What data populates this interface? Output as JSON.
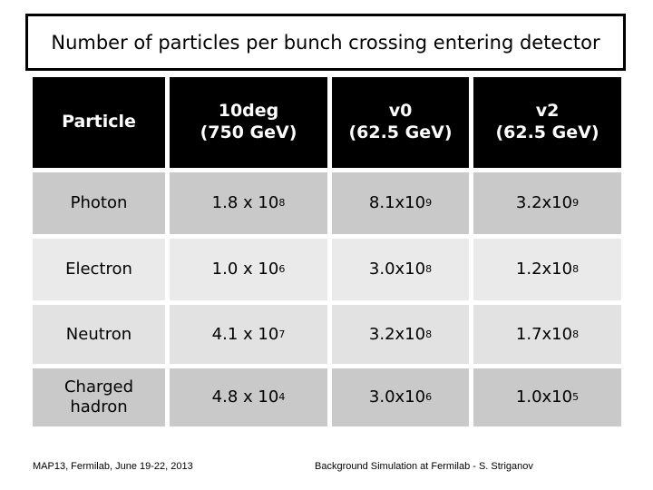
{
  "slide": {
    "title": "Number of particles per bunch crossing entering detector",
    "footer_left": "MAP13, Fermilab, June 19-22, 2013",
    "footer_right": "Background Simulation at Fermilab - S. Striganov"
  },
  "table": {
    "headers": [
      {
        "line1": "Particle",
        "line2": ""
      },
      {
        "line1": "10deg",
        "line2": "(750 GeV)"
      },
      {
        "line1": "v0",
        "line2": "(62.5 GeV)"
      },
      {
        "line1": "v2",
        "line2": "(62.5 GeV)"
      }
    ],
    "rows": [
      {
        "particle": "Photon",
        "values": [
          {
            "base": "1.8 x 10",
            "exp": "8"
          },
          {
            "base": "8.1x10",
            "exp": "9"
          },
          {
            "base": "3.2x10",
            "exp": "9"
          }
        ]
      },
      {
        "particle": "Electron",
        "values": [
          {
            "base": "1.0 x 10",
            "exp": "6"
          },
          {
            "base": "3.0x10",
            "exp": "8"
          },
          {
            "base": "1.2x10",
            "exp": "8"
          }
        ]
      },
      {
        "particle": "Neutron",
        "values": [
          {
            "base": "4.1 x 10",
            "exp": "7"
          },
          {
            "base": "3.2x10",
            "exp": "8"
          },
          {
            "base": "1.7x10",
            "exp": "8"
          }
        ]
      },
      {
        "particle": "Charged hadron",
        "values": [
          {
            "base": "4.8 x 10",
            "exp": "4"
          },
          {
            "base": "3.0x10",
            "exp": "6"
          },
          {
            "base": "1.0x10",
            "exp": "5"
          }
        ]
      }
    ]
  },
  "colors": {
    "header_bg": "#000000",
    "header_text": "#ffffff",
    "row_band_dark": "#c9c9c9",
    "row_band_light": "#eaeaea",
    "row_band_light2": "#e2e2e2"
  }
}
